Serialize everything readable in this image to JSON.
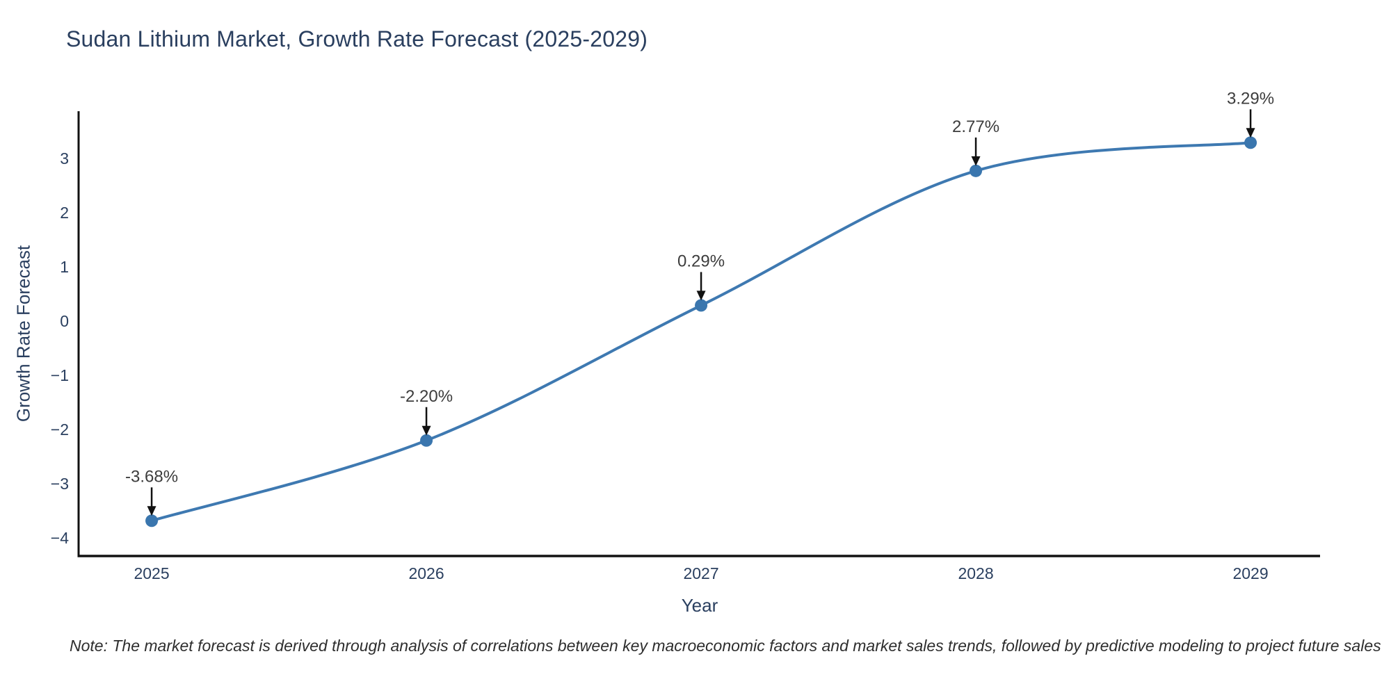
{
  "title": "Sudan Lithium Market, Growth Rate Forecast (2025-2029)",
  "note": "Note: The market forecast is derived through analysis of correlations between key macroeconomic factors and market sales trends, followed by predictive modeling to project future sales",
  "chart_data": {
    "type": "line",
    "title": "Sudan Lithium Market, Growth Rate Forecast (2025-2029)",
    "xlabel": "Year",
    "ylabel": "Growth Rate Forecast",
    "x": [
      2025,
      2026,
      2027,
      2028,
      2029
    ],
    "y": [
      -3.68,
      -2.2,
      0.29,
      2.77,
      3.29
    ],
    "point_labels": [
      "-3.68%",
      "-2.20%",
      "0.29%",
      "2.77%",
      "3.29%"
    ],
    "line_shape": "spline",
    "xticks": [
      2025,
      2026,
      2027,
      2028,
      2029
    ],
    "yticks": [
      3,
      2,
      1,
      0,
      -1,
      -2,
      -3,
      -4
    ],
    "xlim": [
      2024.734,
      2029.253
    ],
    "ylim": [
      -4.33,
      3.87
    ],
    "grid": false,
    "legend": "none",
    "colors": {
      "line": "#3e79b1",
      "marker": "#3a76ae",
      "axis": "#111111",
      "tick_text": "#2a3f5f",
      "annotation_text": "#3d3d3d",
      "arrow": "#111111"
    }
  }
}
